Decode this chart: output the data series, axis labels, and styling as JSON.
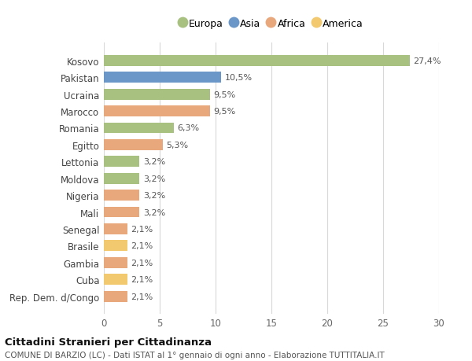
{
  "categories": [
    "Rep. Dem. d/Congo",
    "Cuba",
    "Gambia",
    "Brasile",
    "Senegal",
    "Mali",
    "Nigeria",
    "Moldova",
    "Lettonia",
    "Egitto",
    "Romania",
    "Marocco",
    "Ucraina",
    "Pakistan",
    "Kosovo"
  ],
  "values": [
    2.1,
    2.1,
    2.1,
    2.1,
    2.1,
    3.2,
    3.2,
    3.2,
    3.2,
    5.3,
    6.3,
    9.5,
    9.5,
    10.5,
    27.4
  ],
  "labels": [
    "2,1%",
    "2,1%",
    "2,1%",
    "2,1%",
    "2,1%",
    "3,2%",
    "3,2%",
    "3,2%",
    "3,2%",
    "5,3%",
    "6,3%",
    "9,5%",
    "9,5%",
    "10,5%",
    "27,4%"
  ],
  "colors": [
    "#e8a87c",
    "#f2c96e",
    "#e8a87c",
    "#f2c96e",
    "#e8a87c",
    "#e8a87c",
    "#e8a87c",
    "#a8c080",
    "#a8c080",
    "#e8a87c",
    "#a8c080",
    "#e8a87c",
    "#a8c080",
    "#6a96c8",
    "#a8c080"
  ],
  "legend": [
    {
      "label": "Europa",
      "color": "#a8c080"
    },
    {
      "label": "Asia",
      "color": "#6a96c8"
    },
    {
      "label": "Africa",
      "color": "#e8a87c"
    },
    {
      "label": "America",
      "color": "#f2c96e"
    }
  ],
  "xlim": [
    0,
    30
  ],
  "xticks": [
    0,
    5,
    10,
    15,
    20,
    25,
    30
  ],
  "title1": "Cittadini Stranieri per Cittadinanza",
  "title2": "COMUNE DI BARZIO (LC) - Dati ISTAT al 1° gennaio di ogni anno - Elaborazione TUTTITALIA.IT",
  "bg_color": "#ffffff",
  "grid_color": "#d8d8d8"
}
